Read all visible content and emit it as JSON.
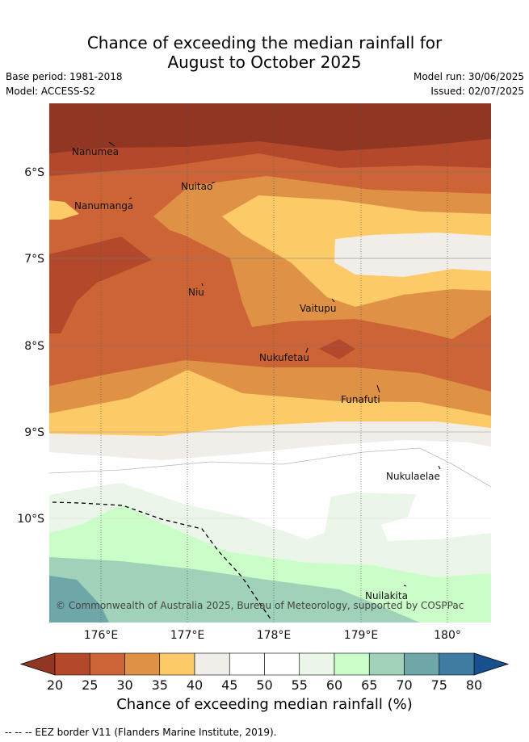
{
  "title": {
    "line1": "Chance of exceeding the median rainfall for",
    "line2": "August to October 2025"
  },
  "meta": {
    "base_period": "Base period: 1981-2018",
    "model": "Model: ACCESS-S2",
    "model_run": "Model run: 30/06/2025",
    "issued": "Issued: 02/07/2025"
  },
  "map": {
    "x_ticks": [
      "176°E",
      "177°E",
      "178°E",
      "179°E",
      "180°"
    ],
    "y_ticks": [
      "6°S",
      "7°S",
      "8°S",
      "9°S",
      "10°S"
    ],
    "places": [
      {
        "id": "nanumea",
        "label": "Nanumea"
      },
      {
        "id": "nuitao",
        "label": "Nuitao"
      },
      {
        "id": "nanumanga",
        "label": "Nanumanga"
      },
      {
        "id": "niu",
        "label": "Niu"
      },
      {
        "id": "vaitupu",
        "label": "Vaitupu"
      },
      {
        "id": "nukufetau",
        "label": "Nukufetau"
      },
      {
        "id": "funafuti",
        "label": "Funafuti"
      },
      {
        "id": "nukulaelae",
        "label": "Nukulaelae"
      },
      {
        "id": "nuilakita",
        "label": "Nuilakita"
      }
    ],
    "copyright": "© Commonwealth of Australia 2025, Bureau of Meteorology, supported by COSPPac"
  },
  "colorbar": {
    "ticks": [
      "20",
      "25",
      "30",
      "35",
      "40",
      "45",
      "50",
      "55",
      "60",
      "65",
      "70",
      "75",
      "80"
    ],
    "colors": [
      "#b3482b",
      "#cd6436",
      "#df9146",
      "#fcca67",
      "#f1ede8",
      "#ffffff",
      "#ffffff",
      "#eaf6e8",
      "#cbfdc8",
      "#9fd2b8",
      "#6fa7a8",
      "#407ba1"
    ],
    "under_color": "#923624",
    "over_color": "#174f8f",
    "label": "Chance of exceeding median rainfall (%)"
  },
  "legend": {
    "eez": "--  --  -- EEZ border V11 (Flanders Marine Institute, 2019)."
  }
}
